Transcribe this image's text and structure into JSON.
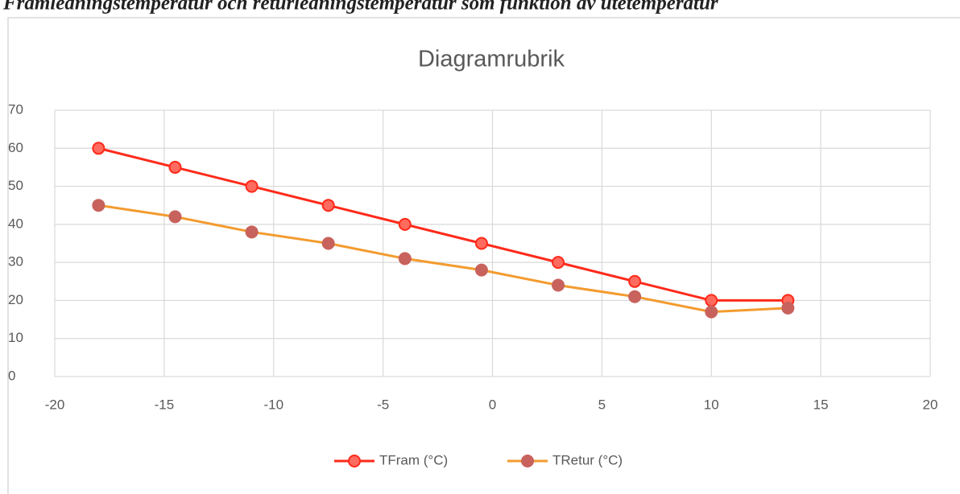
{
  "caption": "Framledningstemperatur och returledningstemperatur som funktion av utetemperatur",
  "chart_data": {
    "type": "scatter",
    "title": "Diagramrubrik",
    "x": [
      -18,
      -14.5,
      -11,
      -7.5,
      -4,
      -0.5,
      3,
      6.5,
      10,
      13.5
    ],
    "series": [
      {
        "name": "TFram (°C)",
        "color": "#ff2a1a",
        "marker_color": "#ff6b5e",
        "values": [
          60,
          55,
          50,
          45,
          40,
          35,
          30,
          25,
          20,
          20
        ]
      },
      {
        "name": "TRetur (°C)",
        "color": "#f39b2f",
        "marker_color": "#c8625c",
        "values": [
          45,
          42,
          38,
          35,
          31,
          28,
          24,
          21,
          17,
          18
        ]
      }
    ],
    "xlim": [
      -20,
      20
    ],
    "xticks": [
      -20,
      -15,
      -10,
      -5,
      0,
      5,
      10,
      15,
      20
    ],
    "ylim": [
      0,
      70
    ],
    "yticks": [
      0,
      10,
      20,
      30,
      40,
      50,
      60,
      70
    ],
    "grid": true,
    "legend": "bottom"
  }
}
